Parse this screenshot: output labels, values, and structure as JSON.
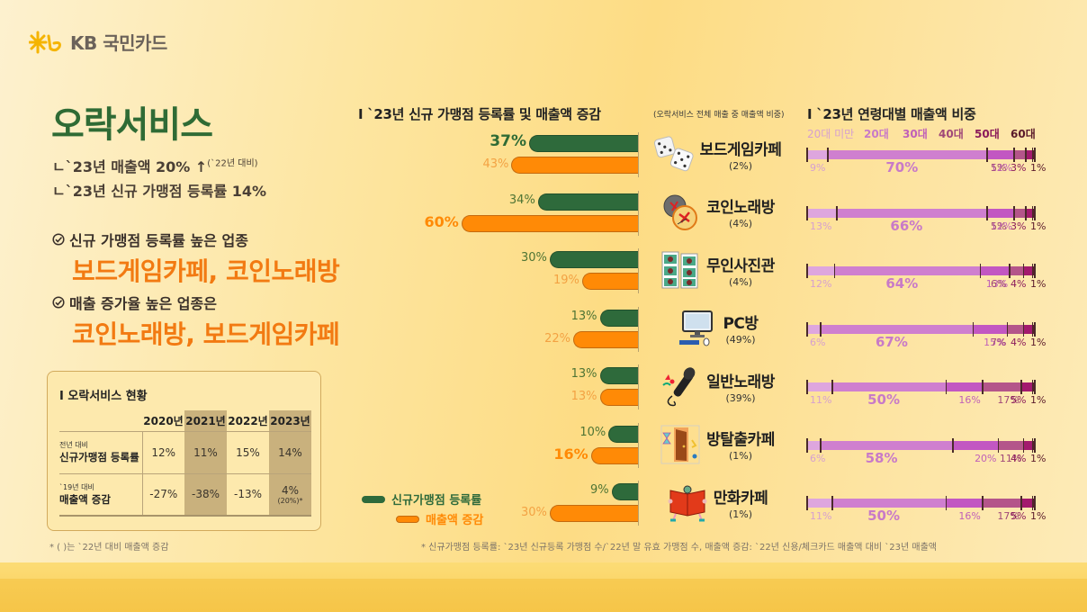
{
  "brand": {
    "logo_text": "KB 국민카드",
    "accent": "#f5b400"
  },
  "headline": {
    "title": "오락서비스",
    "line1": "ㄴ`23년 매출액 20% ↑",
    "line1_note": "(`22년 대비)",
    "line2": "ㄴ`23년 신규 가맹점 등록률 14%"
  },
  "highlights": [
    {
      "label": "신규 가맹점 등록률 높은 업종",
      "value": "보드게임카페, 코인노래방"
    },
    {
      "label": "매출 증가율 높은 업종은",
      "value": "코인노래방, 보드게임카페"
    }
  ],
  "status_table": {
    "title": "I 오락서비스 현황",
    "years": [
      "2020년",
      "2021년",
      "2022년",
      "2023년"
    ],
    "rows": [
      {
        "small": "전년 대비",
        "label": "신규가맹점 등록률",
        "values": [
          "12%",
          "11%",
          "15%",
          "14%"
        ],
        "note": ""
      },
      {
        "small": "`19년 대비",
        "label": "매출액 증감",
        "values": [
          "-27%",
          "-38%",
          "-13%",
          "4%"
        ],
        "note": "(20%)*"
      }
    ],
    "footnote": "* ( )는 `22년 대비 매출액 증감"
  },
  "left_chart": {
    "title": "I `23년 신규 가맹점 등록률 및 매출액 증감",
    "subtitle": "(오락서비스 전체 매출 중 매출액 비중)",
    "legend": {
      "green": "신규가맹점 등록률",
      "orange": "매출액 증감"
    },
    "colors": {
      "green": "#2e6a3b",
      "orange": "#ff8a06"
    }
  },
  "right_chart": {
    "title": "I `23년 연령대별 매출액 비중",
    "age_groups": [
      "20대 미만",
      "20대",
      "30대",
      "40대",
      "50대",
      "60대"
    ],
    "colors": [
      "#dea6de",
      "#cf7fcf",
      "#c257c2",
      "#b4558a",
      "#a31a6e",
      "#5e1d2e"
    ],
    "label_colors": [
      "#d6a0cf",
      "#c87ac8",
      "#c060b8",
      "#a04878",
      "#8a1a5a",
      "#5a1a2a"
    ]
  },
  "footnote_right": "* 신규가맹점 등록률: `23년 신규등록 가맹점 수/`22년 말 유효 가맹점 수, 매출액 증감: `22년 신용/체크카드 매출액 대비 `23년 매출액",
  "chart_data": [
    {
      "type": "bar",
      "title": "`23년 신규 가맹점 등록률 및 매출액 증감",
      "orientation": "horizontal",
      "categories": [
        "보드게임카페",
        "코인노래방",
        "무인사진관",
        "PC방",
        "일반노래방",
        "방탈출카페",
        "만화카페"
      ],
      "category_share": [
        "(2%)",
        "(4%)",
        "(4%)",
        "(49%)",
        "(39%)",
        "(1%)",
        "(1%)"
      ],
      "series": [
        {
          "name": "신규가맹점 등록률",
          "values": [
            37,
            34,
            30,
            13,
            13,
            10,
            9
          ],
          "bold": [
            true,
            false,
            false,
            false,
            false,
            false,
            false
          ]
        },
        {
          "name": "매출액 증감",
          "values": [
            43,
            60,
            19,
            22,
            13,
            16,
            30
          ],
          "bold": [
            false,
            true,
            false,
            false,
            false,
            true,
            false
          ]
        }
      ],
      "unit": "%"
    },
    {
      "type": "bar",
      "stacked": true,
      "title": "`23년 연령대별 매출액 비중",
      "categories": [
        "보드게임카페",
        "코인노래방",
        "무인사진관",
        "PC방",
        "일반노래방",
        "방탈출카페",
        "만화카페"
      ],
      "series": [
        {
          "name": "20대 미만",
          "values": [
            9,
            13,
            12,
            6,
            11,
            6,
            11
          ]
        },
        {
          "name": "20대",
          "values": [
            70,
            66,
            64,
            67,
            50,
            58,
            50
          ]
        },
        {
          "name": "30대",
          "values": [
            12,
            12,
            13,
            15,
            16,
            20,
            16
          ]
        },
        {
          "name": "40대",
          "values": [
            5,
            5,
            6,
            7,
            17,
            11,
            17
          ]
        },
        {
          "name": "50대",
          "values": [
            3,
            3,
            4,
            4,
            5,
            4,
            5
          ]
        },
        {
          "name": "60대",
          "values": [
            1,
            1,
            1,
            1,
            1,
            1,
            1
          ]
        }
      ],
      "unit": "%"
    }
  ]
}
